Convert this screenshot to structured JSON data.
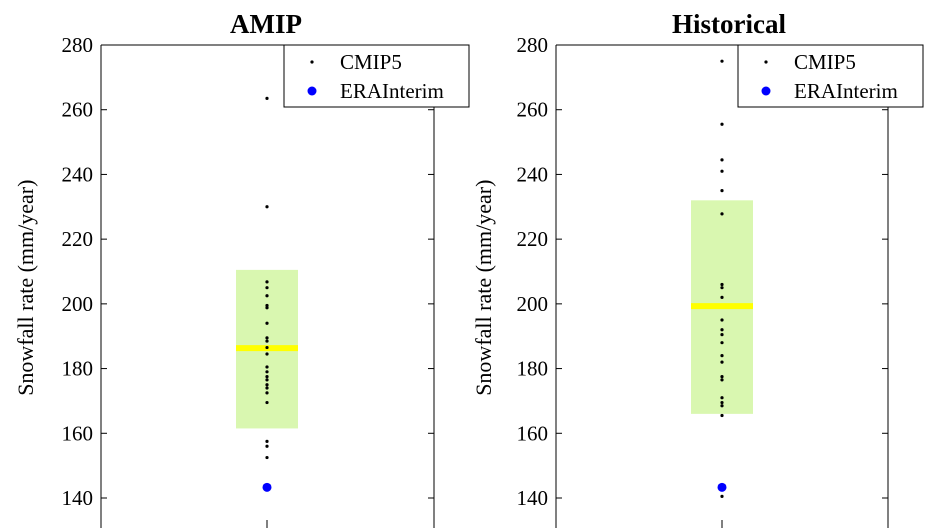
{
  "chart_data": [
    {
      "type": "scatter",
      "title": "AMIP",
      "ylabel": "Snowfall rate (mm/year)",
      "ylim": [
        130,
        280
      ],
      "yticks": [
        140,
        160,
        180,
        200,
        220,
        240,
        260,
        280
      ],
      "legend": {
        "placement": "top-right",
        "entries": [
          "CMIP5",
          "ERAInterim"
        ]
      },
      "range_box": {
        "low": 161.5,
        "high": 210.5,
        "color": "#d9f7b0"
      },
      "mean_line": {
        "value": 186.3,
        "color": "#ffff00"
      },
      "series": [
        {
          "name": "CMIP5",
          "color": "#000000",
          "values": [
            263.5,
            230,
            206.8,
            205,
            202.5,
            199.5,
            198.8,
            194,
            189.5,
            188.5,
            186.5,
            184.5,
            180.5,
            179,
            177.5,
            176.5,
            175,
            174,
            172.5,
            169.5,
            157.5,
            156,
            152.5
          ]
        },
        {
          "name": "ERAInterim",
          "color": "#0000ff",
          "values": [
            143.3
          ]
        }
      ]
    },
    {
      "type": "scatter",
      "title": "Historical",
      "ylabel": "Snowfall rate (mm/year)",
      "ylim": [
        130,
        280
      ],
      "yticks": [
        140,
        160,
        180,
        200,
        220,
        240,
        260,
        280
      ],
      "legend": {
        "placement": "top-right",
        "entries": [
          "CMIP5",
          "ERAInterim"
        ]
      },
      "range_box": {
        "low": 166,
        "high": 232,
        "color": "#d9f7b0"
      },
      "mean_line": {
        "value": 199.3,
        "color": "#ffff00"
      },
      "series": [
        {
          "name": "CMIP5",
          "color": "#000000",
          "values": [
            275,
            255.5,
            244.5,
            241,
            235,
            227.8,
            206,
            205,
            202,
            195,
            192,
            190.5,
            188,
            184,
            182,
            177.5,
            176.5,
            171,
            169.5,
            168.5,
            165.5,
            140.5
          ]
        },
        {
          "name": "ERAInterim",
          "color": "#0000ff",
          "values": [
            143.3
          ]
        }
      ]
    }
  ]
}
